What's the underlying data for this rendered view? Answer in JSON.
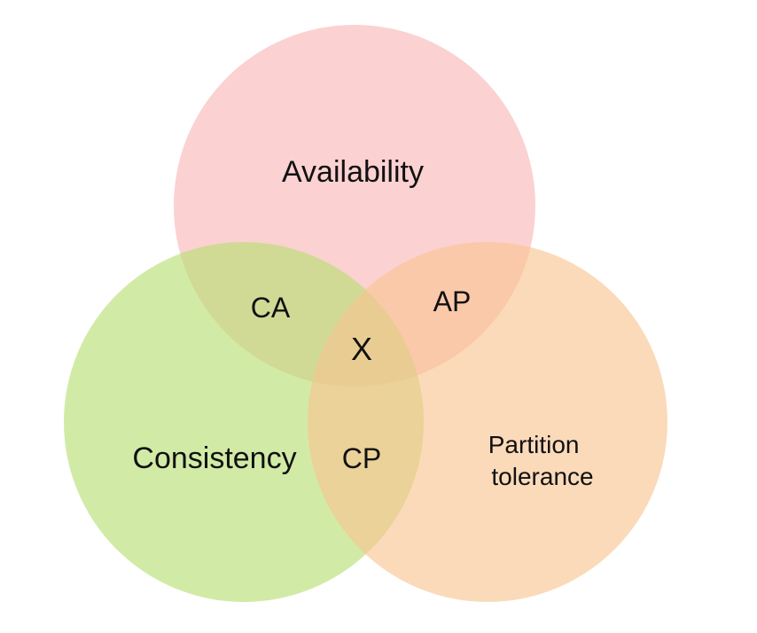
{
  "diagram": {
    "sets": {
      "availability": {
        "label": "Availability",
        "color": "#f8b4b4"
      },
      "consistency": {
        "label": "Consistency",
        "color": "#b5de6f"
      },
      "partition": {
        "label_lines": [
          "Partition",
          "tolerance"
        ],
        "color": "#f9c48f"
      }
    },
    "intersections": {
      "ca": "CA",
      "ap": "AP",
      "cp": "CP",
      "center": {
        "label": "X",
        "color": "#cc0000"
      }
    }
  }
}
